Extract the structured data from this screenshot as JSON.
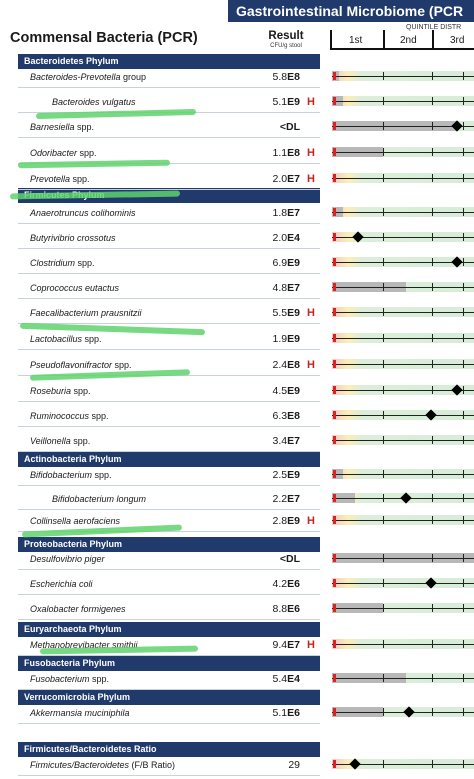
{
  "header": {
    "banner": "Gastrointestinal Microbiome (PCR",
    "title": "Commensal Bacteria (PCR)",
    "result_label": "Result",
    "result_unit": "CFU/g stool",
    "quintile_label": "QUINTILE DISTR",
    "quintiles": [
      "1st",
      "2nd",
      "3rd"
    ]
  },
  "sections": {
    "bacteroidetes": "Bacteroidetes Phylum",
    "firmicutes": "Firmicutes Phylum",
    "actinobacteria": "Actinobacteria Phylum",
    "proteobacteria": "Proteobacteria Phylum",
    "euryarchaeota": "Euryarchaeota Phylum",
    "fusobacteria": "Fusobacteria Phylum",
    "verrucomicrobia": "Verrucomicrobia Phylum",
    "ratio": "Firmicutes/Bacteroidetes Ratio"
  },
  "rows": [
    {
      "name": "Bacteroides-Prevotella",
      "suffix": " group",
      "mant": "5.8",
      "exp": "E8",
      "flag": "",
      "level": 0.05,
      "marker": null
    },
    {
      "name": "Bacteroides vulgatus",
      "suffix": "",
      "mant": "5.1",
      "exp": "E9",
      "flag": "H",
      "level": 0.08,
      "marker": null
    },
    {
      "name": "Barnesiella",
      "suffix": " spp.",
      "mant": "",
      "exp": "<DL",
      "flag": "",
      "level": 0.88,
      "marker": 0.88
    },
    {
      "name": "Odoribacter",
      "suffix": " spp.",
      "mant": "1.1",
      "exp": "E8",
      "flag": "H",
      "level": 0.36,
      "marker": null
    },
    {
      "name": "Prevotella",
      "suffix": " spp.",
      "mant": "2.0",
      "exp": "E7",
      "flag": "H",
      "level": 0.0,
      "marker": null
    },
    {
      "name": "Anaerotruncus colihominis",
      "suffix": "",
      "mant": "1.8",
      "exp": "E7",
      "flag": "",
      "level": 0.08,
      "marker": null
    },
    {
      "name": "Butyrivibrio crossotus",
      "suffix": "",
      "mant": "2.0",
      "exp": "E4",
      "flag": "",
      "level": 0.0,
      "marker": 0.18
    },
    {
      "name": "Clostridium",
      "suffix": " spp.",
      "mant": "6.9",
      "exp": "E9",
      "flag": "",
      "level": 0.0,
      "marker": 0.88
    },
    {
      "name": "Coprococcus eutactus",
      "suffix": "",
      "mant": "4.8",
      "exp": "E7",
      "flag": "",
      "level": 0.52,
      "marker": null
    },
    {
      "name": "Faecalibacterium prausnitzii",
      "suffix": "",
      "mant": "5.5",
      "exp": "E9",
      "flag": "H",
      "level": 0.0,
      "marker": null
    },
    {
      "name": "Lactobacillus",
      "suffix": " spp.",
      "mant": "1.9",
      "exp": "E9",
      "flag": "",
      "level": 0.0,
      "marker": null
    },
    {
      "name": "Pseudoflavonifractor",
      "suffix": " spp.",
      "mant": "2.4",
      "exp": "E8",
      "flag": "H",
      "level": 0.0,
      "marker": null
    },
    {
      "name": "Roseburia",
      "suffix": " spp.",
      "mant": "4.5",
      "exp": "E9",
      "flag": "",
      "level": 0.0,
      "marker": 0.88
    },
    {
      "name": "Ruminococcus",
      "suffix": " spp.",
      "mant": "6.3",
      "exp": "E8",
      "flag": "",
      "level": 0.0,
      "marker": 0.7
    },
    {
      "name": "Veillonella",
      "suffix": " spp.",
      "mant": "3.4",
      "exp": "E7",
      "flag": "",
      "level": 0.0,
      "marker": null
    },
    {
      "name": "Bifidobacterium",
      "suffix": " spp.",
      "mant": "2.5",
      "exp": "E9",
      "flag": "",
      "level": 0.08,
      "marker": null
    },
    {
      "name": "Bifidobacterium longum",
      "suffix": "",
      "mant": "2.2",
      "exp": "E7",
      "flag": "",
      "level": 0.16,
      "marker": 0.52
    },
    {
      "name": "Collinsella aerofaciens",
      "suffix": "",
      "mant": "2.8",
      "exp": "E9",
      "flag": "H",
      "level": 0.0,
      "marker": null
    },
    {
      "name": "Desulfovibrio piger",
      "suffix": "",
      "mant": "",
      "exp": "<DL",
      "flag": "",
      "level": 1.0,
      "marker": null
    },
    {
      "name": "Escherichia coli",
      "suffix": "",
      "mant": "4.2",
      "exp": "E6",
      "flag": "",
      "level": 0.0,
      "marker": 0.7
    },
    {
      "name": "Oxalobacter formigenes",
      "suffix": "",
      "mant": "8.8",
      "exp": "E6",
      "flag": "",
      "level": 0.36,
      "marker": null
    },
    {
      "name": "Methanobrevibacter smithii",
      "suffix": "",
      "mant": "9.4",
      "exp": "E7",
      "flag": "H",
      "level": 0.0,
      "marker": null
    },
    {
      "name": "Fusobacterium",
      "suffix": " spp.",
      "mant": "5.4",
      "exp": "E4",
      "flag": "",
      "level": 0.52,
      "marker": null
    },
    {
      "name": "Akkermansia muciniphila",
      "suffix": "",
      "mant": "5.1",
      "exp": "E6",
      "flag": "",
      "level": 0.36,
      "marker": 0.54
    },
    {
      "name": "Firmicutes/Bacteroidetes",
      "suffix": " (F/B Ratio)",
      "mant": "29",
      "exp": "",
      "flag": "",
      "level": 0.0,
      "marker": 0.16
    }
  ]
}
